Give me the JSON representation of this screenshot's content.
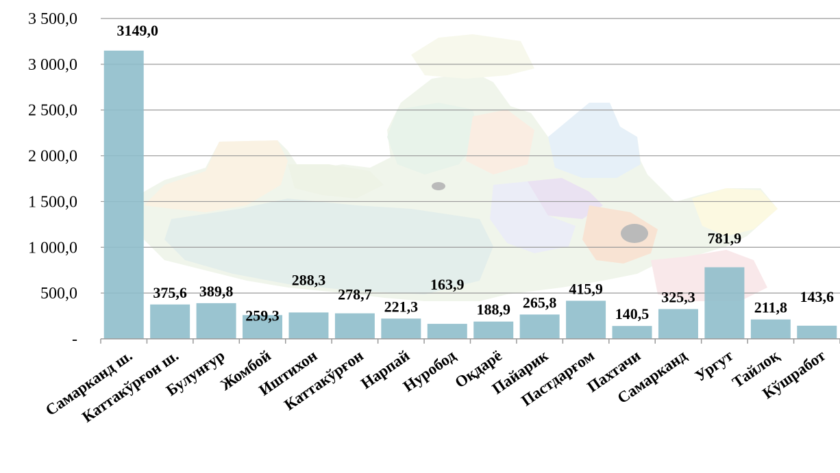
{
  "chart_data": {
    "type": "bar",
    "title": "",
    "xlabel": "",
    "ylabel": "",
    "ylim": [
      0,
      3500
    ],
    "grid": true,
    "legend": "none",
    "bar_color": "#8fbecb",
    "y_ticks": [
      {
        "value": 0,
        "label": "-"
      },
      {
        "value": 500,
        "label": "500,0"
      },
      {
        "value": 1000,
        "label": "1 000,0"
      },
      {
        "value": 1500,
        "label": "1 500,0"
      },
      {
        "value": 2000,
        "label": "2 000,0"
      },
      {
        "value": 2500,
        "label": "2 500,0"
      },
      {
        "value": 3000,
        "label": "3 000,0"
      },
      {
        "value": 3500,
        "label": "3 500,0"
      }
    ],
    "categories": [
      "Самарканд ш.",
      "Каттакўрғон ш.",
      "Булунғур",
      "Жомбой",
      "Иштихон",
      "Каттакўрғон",
      "Нарпай",
      "Нуробод",
      "Оқдарё",
      "Пайарик",
      "Пастдарғом",
      "Пахтачи",
      "Самарканд",
      "Ургут",
      "Тайлоқ",
      "Кўшработ"
    ],
    "values": [
      3149.0,
      375.6,
      389.8,
      259.3,
      288.3,
      278.7,
      221.3,
      163.9,
      188.9,
      265.8,
      415.9,
      140.5,
      325.3,
      781.9,
      211.8,
      143.6
    ],
    "value_labels": [
      "3149,0",
      "375,6",
      "389,8",
      "259,3",
      "288,3",
      "278,7",
      "221,3",
      "163,9",
      "188,9",
      "265,8",
      "415,9",
      "140,5",
      "325,3",
      "781,9",
      "211,8",
      "143,6"
    ]
  }
}
